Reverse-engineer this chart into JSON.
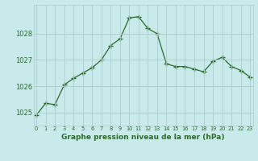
{
  "x": [
    0,
    1,
    2,
    3,
    4,
    5,
    6,
    7,
    8,
    9,
    10,
    11,
    12,
    13,
    14,
    15,
    16,
    17,
    18,
    19,
    20,
    21,
    22,
    23
  ],
  "y": [
    1024.9,
    1025.35,
    1025.3,
    1026.05,
    1026.3,
    1026.5,
    1026.7,
    1027.0,
    1027.55,
    1027.8,
    1028.6,
    1028.65,
    1028.2,
    1028.0,
    1026.85,
    1026.75,
    1026.75,
    1026.65,
    1026.55,
    1026.95,
    1027.1,
    1026.75,
    1026.6,
    1026.35
  ],
  "line_color": "#2d6a2d",
  "marker": "+",
  "marker_color": "#2d6a2d",
  "bg_color": "#c8eaea",
  "grid_color": "#b0cccc",
  "xlabel": "Graphe pression niveau de la mer (hPa)",
  "xlabel_color": "#2d6a2d",
  "tick_color": "#2d6a2d",
  "ylim": [
    1024.5,
    1029.1
  ],
  "yticks": [
    1025,
    1026,
    1027,
    1028
  ],
  "xticks": [
    0,
    1,
    2,
    3,
    4,
    5,
    6,
    7,
    8,
    9,
    10,
    11,
    12,
    13,
    14,
    15,
    16,
    17,
    18,
    19,
    20,
    21,
    22,
    23
  ],
  "xlim": [
    -0.3,
    23.3
  ]
}
